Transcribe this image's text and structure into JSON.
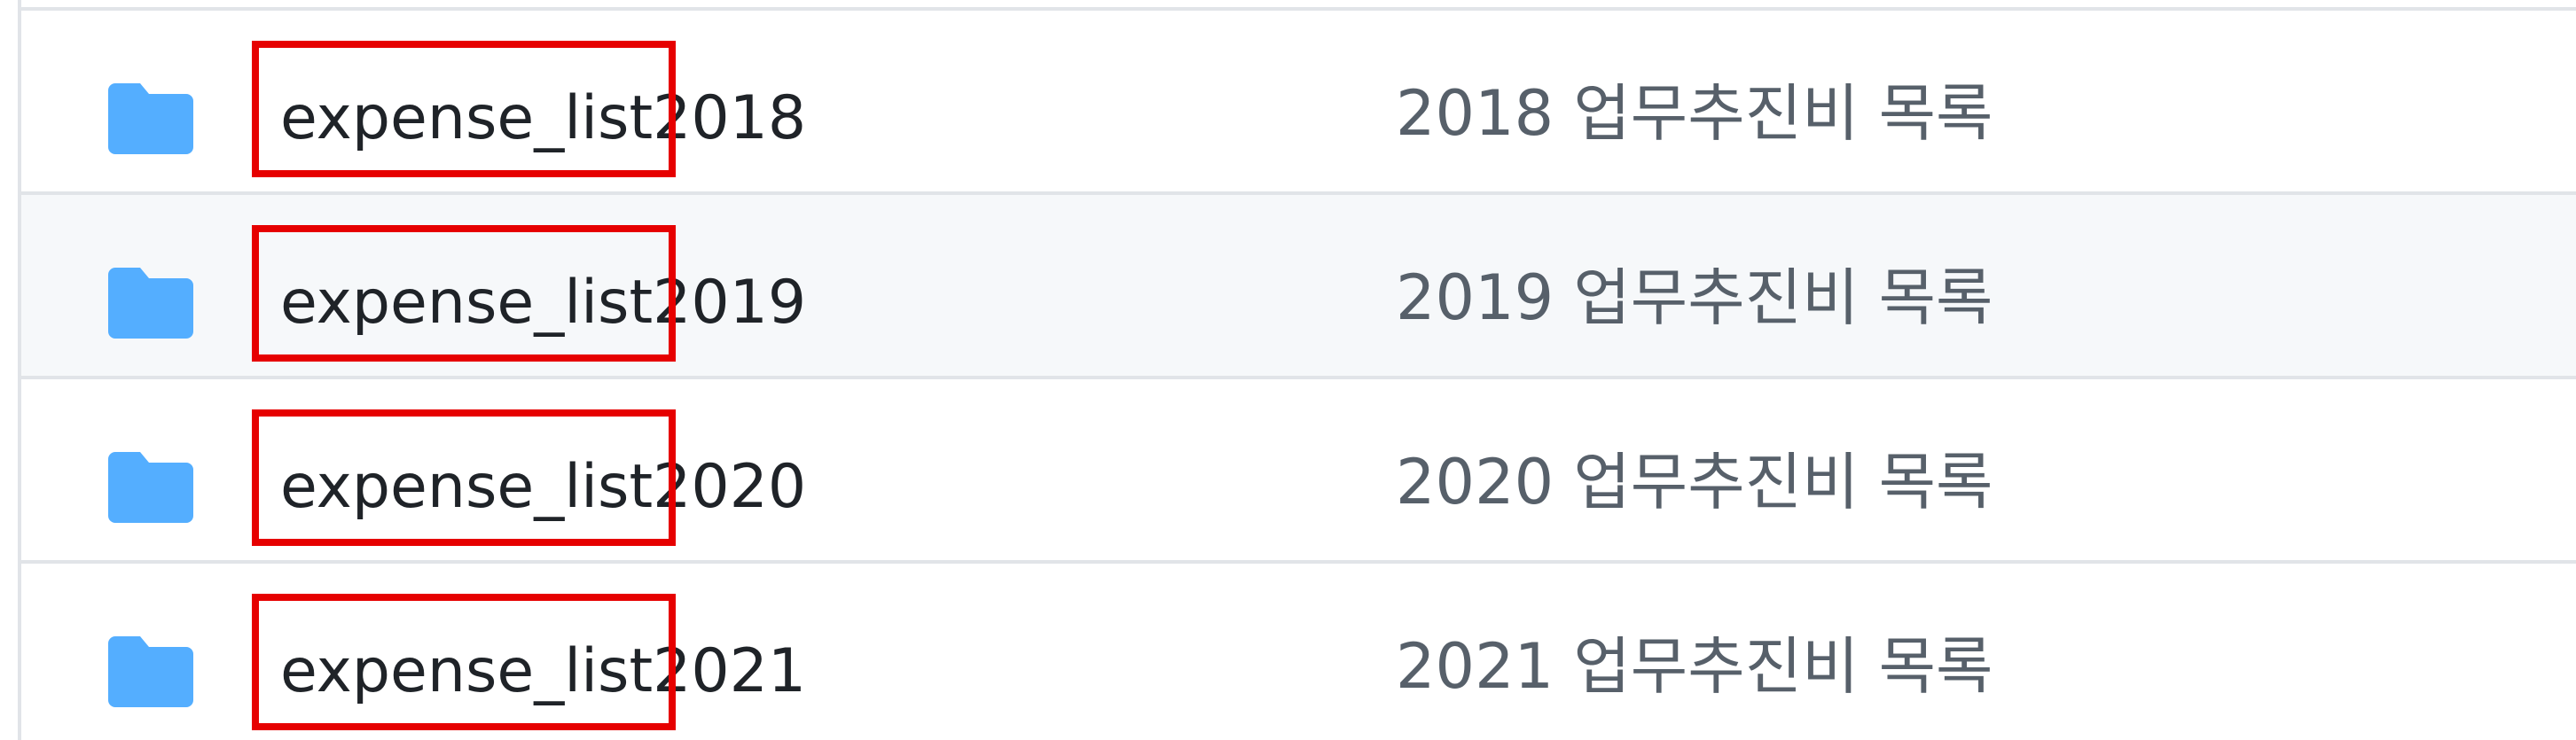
{
  "file_list": {
    "rows": [
      {
        "name": "expense_list2018",
        "description": "2018 업무추진비 목록",
        "icon": "folder-icon",
        "highlight": "expense_list"
      },
      {
        "name": "expense_list2019",
        "description": "2019 업무추진비 목록",
        "icon": "folder-icon",
        "highlight": "expense_list"
      },
      {
        "name": "expense_list2020",
        "description": "2020 업무추진비 목록",
        "icon": "folder-icon",
        "highlight": "expense_list"
      },
      {
        "name": "expense_list2021",
        "description": "2021 업무추진비 목록",
        "icon": "folder-icon",
        "highlight": "expense_list"
      }
    ]
  },
  "colors": {
    "folder": "#54aeff",
    "highlight_border": "#e60000",
    "alt_row_bg": "#f6f8fa",
    "divider": "#e1e4e8",
    "name_text": "#1f2328",
    "desc_text": "#57606a"
  }
}
